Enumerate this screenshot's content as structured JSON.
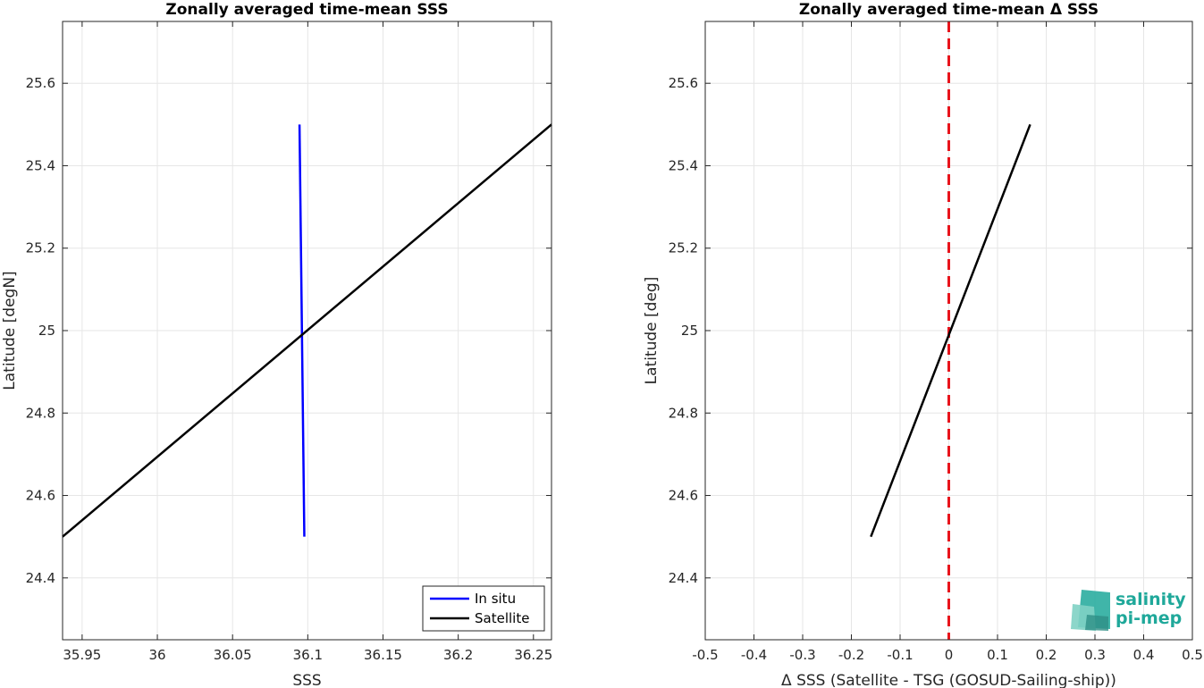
{
  "chart_data": [
    {
      "type": "line",
      "title": "Zonally averaged time-mean SSS",
      "xlabel": "SSS",
      "ylabel": "Latitude [degN]",
      "xlim": [
        35.937,
        36.262
      ],
      "ylim": [
        24.25,
        25.75
      ],
      "xticks": [
        35.95,
        36,
        36.05,
        36.1,
        36.15,
        36.2,
        36.25
      ],
      "xtick_labels": [
        "35.95",
        "36",
        "36.05",
        "36.1",
        "36.15",
        "36.2",
        "36.25"
      ],
      "yticks": [
        24.4,
        24.6,
        24.8,
        25,
        25.2,
        25.4,
        25.6
      ],
      "ytick_labels": [
        "24.4",
        "24.6",
        "24.8",
        "25",
        "25.2",
        "25.4",
        "25.6"
      ],
      "grid": true,
      "legend_position": "bottom-right",
      "series": [
        {
          "name": "In situ",
          "color": "#0000ff",
          "x": [
            36.0977,
            36.0945
          ],
          "y": [
            24.5,
            25.5
          ]
        },
        {
          "name": "Satellite",
          "color": "#000000",
          "x": [
            35.937,
            36.262
          ],
          "y": [
            24.5,
            25.5
          ]
        }
      ]
    },
    {
      "type": "line",
      "title": "Zonally averaged time-mean Δ SSS",
      "xlabel": "Δ SSS (Satellite - TSG (GOSUD-Sailing-ship))",
      "ylabel": "Latitude [deg]",
      "xlim": [
        -0.5,
        0.5
      ],
      "ylim": [
        24.25,
        25.75
      ],
      "xticks": [
        -0.5,
        -0.4,
        -0.3,
        -0.2,
        -0.1,
        0,
        0.1,
        0.2,
        0.3,
        0.4,
        0.5
      ],
      "xtick_labels": [
        "-0.5",
        "-0.4",
        "-0.3",
        "-0.2",
        "-0.1",
        "0",
        "0.1",
        "0.2",
        "0.3",
        "0.4",
        "0.5"
      ],
      "yticks": [
        24.4,
        24.6,
        24.8,
        25,
        25.2,
        25.4,
        25.6
      ],
      "ytick_labels": [
        "24.4",
        "24.6",
        "24.8",
        "25",
        "25.2",
        "25.4",
        "25.6"
      ],
      "grid": true,
      "reference_line": {
        "x": 0,
        "color": "#e8141c",
        "style": "dashed"
      },
      "series": [
        {
          "color": "#000000",
          "x": [
            -0.16,
            0.167
          ],
          "y": [
            24.5,
            25.5
          ]
        }
      ]
    }
  ],
  "logo": {
    "line1": "salinity",
    "line2": "pi-mep",
    "color": "#1fa89a"
  }
}
